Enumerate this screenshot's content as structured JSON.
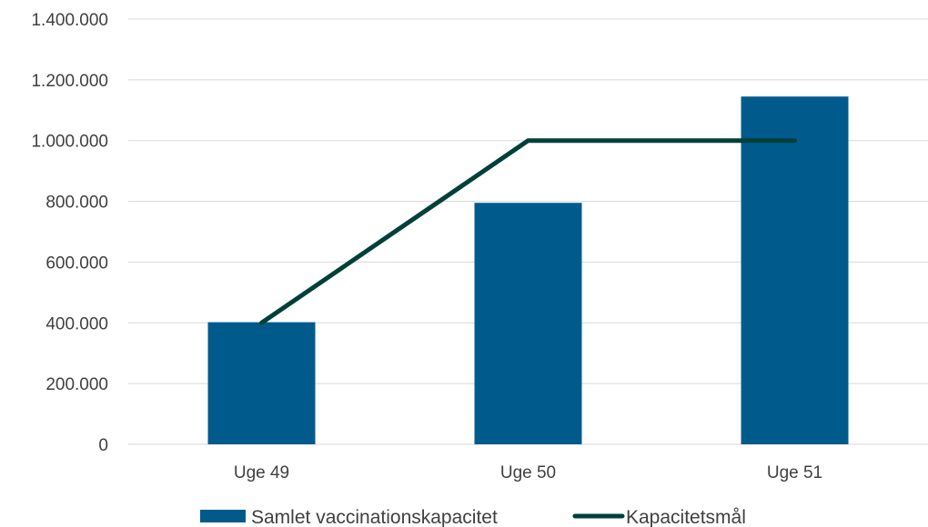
{
  "chart_data": {
    "type": "bar",
    "categories": [
      "Uge 49",
      "Uge 50",
      "Uge 51"
    ],
    "y_ticks": [
      "0",
      "200.000",
      "400.000",
      "600.000",
      "800.000",
      "1.000.000",
      "1.200.000",
      "1.400.000"
    ],
    "ylim": [
      0,
      1400000
    ],
    "grid": true,
    "legend_position": "bottom",
    "series": [
      {
        "name": "Samlet vaccinationskapacitet",
        "type": "bar",
        "color": "#005b8c",
        "values": [
          402000,
          795000,
          1145000
        ]
      },
      {
        "name": "Kapacitetsmål",
        "type": "line",
        "color": "#00403a",
        "values": [
          400000,
          1000000,
          1000000
        ]
      }
    ]
  }
}
